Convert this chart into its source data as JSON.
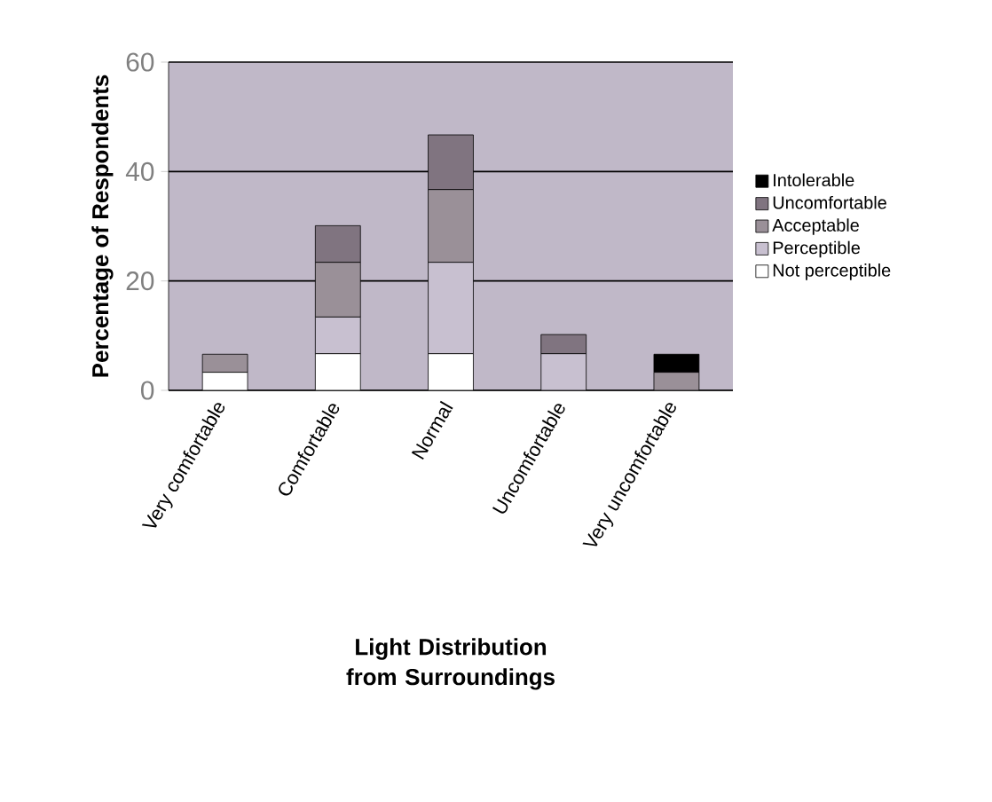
{
  "chart_data": {
    "type": "bar",
    "stacked": true,
    "xlabel": "Light Distribution from Surroundings",
    "ylabel": "Percentage of Respondents",
    "categories": [
      "Very comfortable",
      "Comfortable",
      "Normal",
      "Uncomfortable",
      "Very uncomfortable"
    ],
    "series": [
      {
        "name": "Not perceptible",
        "color": "#ffffff",
        "values": [
          3.3,
          6.7,
          6.7,
          null,
          null
        ]
      },
      {
        "name": "Perceptible",
        "color": "#c8c0d0",
        "values": [
          null,
          6.7,
          16.7,
          6.7,
          null
        ]
      },
      {
        "name": "Acceptable",
        "color": "#9a9098",
        "values": [
          3.3,
          10,
          13.3,
          null,
          3.3
        ]
      },
      {
        "name": "Uncomfortable",
        "color": "#807480",
        "values": [
          null,
          6.7,
          10,
          3.5,
          null
        ]
      },
      {
        "name": "Intolerable",
        "color": "#000000",
        "values": [
          null,
          null,
          null,
          null,
          3.3
        ]
      }
    ],
    "ylim": [
      0,
      60
    ],
    "yticks": [
      0,
      20,
      40,
      60
    ],
    "grid": "y",
    "legend": "right"
  }
}
